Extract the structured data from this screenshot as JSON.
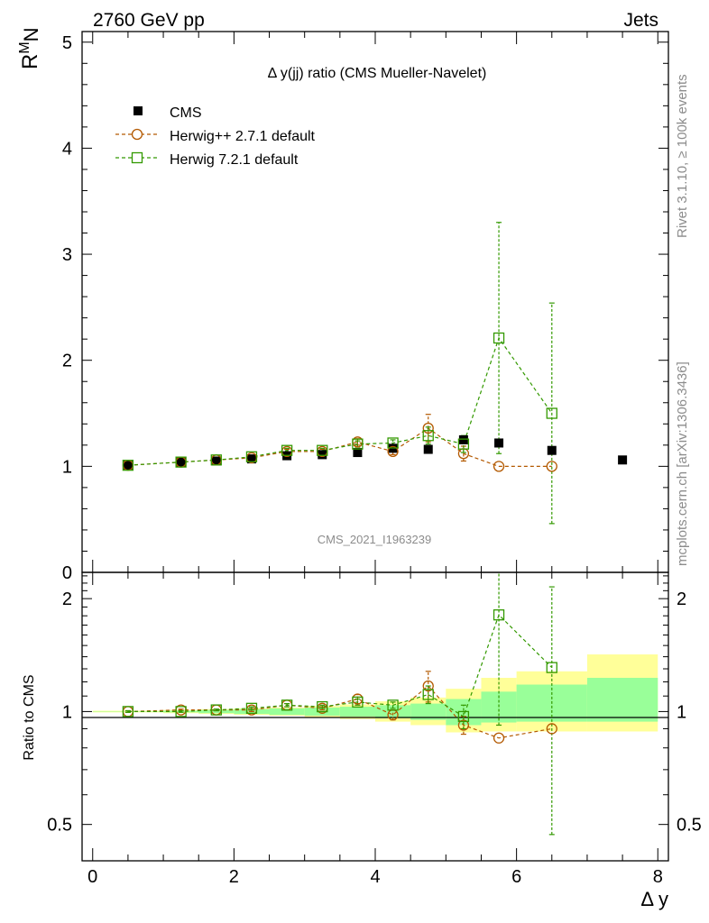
{
  "header": {
    "left": "2760 GeV pp",
    "right": "Jets"
  },
  "side_labels": {
    "rivet": "Rivet 3.1.10, ≥ 100k events",
    "mcplots": "mcplots.cern.ch [arXiv:1306.3436]"
  },
  "watermark": "CMS_2021_I1963239",
  "colors": {
    "cms": "#000000",
    "herwigpp": "#b35900",
    "herwig7": "#339900",
    "band_inner": "#99ff99",
    "band_outer": "#ffff99"
  },
  "chart_data": [
    {
      "type": "scatter",
      "panel": "main",
      "title": "Δ y(jj) ratio (CMS Mueller-Navelet)",
      "ylabel_main": "R",
      "ylabel_sup": "M",
      "ylabel_sub": "N",
      "xlabel": "Δ y",
      "xlim": [
        -0.15,
        8.15
      ],
      "ylim": [
        0,
        5.1
      ],
      "yticks": [
        1,
        2,
        3,
        4,
        5
      ],
      "ytick_labels": [
        "1",
        "2",
        "3",
        "4",
        "5"
      ],
      "bottom_tick_label": "0",
      "legend_position": "top-left",
      "series": [
        {
          "name": "CMS",
          "style": "marker",
          "x": [
            0.5,
            1.25,
            1.75,
            2.25,
            2.75,
            3.25,
            3.75,
            4.25,
            4.75,
            5.25,
            5.75,
            6.5,
            7.5
          ],
          "y": [
            1.01,
            1.04,
            1.05,
            1.07,
            1.1,
            1.11,
            1.13,
            1.17,
            1.16,
            1.25,
            1.22,
            1.15,
            1.06
          ],
          "yerr": [
            0,
            0,
            0,
            0,
            0,
            0,
            0,
            0,
            0,
            0,
            0,
            0,
            0
          ]
        },
        {
          "name": "Herwig++ 2.7.1 default",
          "style": "circle",
          "x": [
            0.5,
            1.25,
            1.75,
            2.25,
            2.75,
            3.25,
            3.75,
            4.25,
            4.75,
            5.25,
            5.75,
            6.5
          ],
          "y": [
            1.01,
            1.04,
            1.06,
            1.08,
            1.14,
            1.14,
            1.23,
            1.14,
            1.36,
            1.12,
            1.0,
            1.0
          ],
          "yerr": [
            0.01,
            0.01,
            0.01,
            0.01,
            0.02,
            0.02,
            0.03,
            0.03,
            0.13,
            0.07,
            0,
            0
          ]
        },
        {
          "name": "Herwig 7.2.1 default",
          "style": "square",
          "x": [
            0.5,
            1.25,
            1.75,
            2.25,
            2.75,
            3.25,
            3.75,
            4.25,
            4.75,
            5.25,
            5.75,
            6.5
          ],
          "y": [
            1.01,
            1.04,
            1.06,
            1.09,
            1.15,
            1.15,
            1.21,
            1.22,
            1.29,
            1.21,
            2.21,
            1.5
          ],
          "yerr": [
            0.01,
            0.01,
            0.01,
            0.01,
            0.02,
            0.02,
            0.03,
            0.03,
            0.08,
            0.08,
            1.09,
            1.04
          ]
        }
      ]
    },
    {
      "type": "scatter",
      "panel": "ratio",
      "ylabel": "Ratio to CMS",
      "xlabel": "Δ y",
      "xlim": [
        -0.15,
        8.15
      ],
      "ylim": [
        0.4,
        2.35
      ],
      "yticks": [
        0.5,
        1,
        2
      ],
      "ytick_labels": [
        "0.5",
        "1",
        "2"
      ],
      "xticks": [
        0,
        2,
        4,
        6,
        8
      ],
      "xtick_labels": [
        "0",
        "2",
        "4",
        "6",
        "8"
      ],
      "bands": {
        "x_edges": [
          0,
          1,
          1.5,
          2,
          2.5,
          3,
          3.5,
          4,
          4.5,
          5,
          5.5,
          6,
          7,
          8
        ],
        "inner_low": [
          1.0,
          0.995,
          0.99,
          0.985,
          0.98,
          0.975,
          0.97,
          0.96,
          0.95,
          0.92,
          0.935,
          0.94,
          0.94
        ],
        "inner_high": [
          1.0,
          1.005,
          1.01,
          1.015,
          1.02,
          1.025,
          1.03,
          1.04,
          1.05,
          1.08,
          1.13,
          1.18,
          1.23
        ],
        "outer_low": [
          0.995,
          0.99,
          0.985,
          0.98,
          0.975,
          0.965,
          0.955,
          0.94,
          0.92,
          0.88,
          0.885,
          0.885,
          0.885
        ],
        "outer_high": [
          1.005,
          1.01,
          1.015,
          1.02,
          1.025,
          1.035,
          1.045,
          1.065,
          1.09,
          1.15,
          1.23,
          1.28,
          1.42
        ]
      },
      "series": [
        {
          "name": "Herwig++ 2.7.1 default",
          "style": "circle",
          "x": [
            0.5,
            1.25,
            1.75,
            2.25,
            2.75,
            3.25,
            3.75,
            4.25,
            4.75,
            5.25,
            5.75,
            6.5
          ],
          "y": [
            1.0,
            1.01,
            1.01,
            1.01,
            1.04,
            1.02,
            1.08,
            0.98,
            1.17,
            0.92,
            0.85,
            0.9
          ],
          "yerr": [
            0.005,
            0.005,
            0.005,
            0.01,
            0.01,
            0.01,
            0.03,
            0.03,
            0.11,
            0.05,
            0,
            0
          ]
        },
        {
          "name": "Herwig 7.2.1 default",
          "style": "square",
          "x": [
            0.5,
            1.25,
            1.75,
            2.25,
            2.75,
            3.25,
            3.75,
            4.25,
            4.75,
            5.25,
            5.75,
            6.5
          ],
          "y": [
            1.0,
            1.0,
            1.01,
            1.02,
            1.04,
            1.03,
            1.06,
            1.04,
            1.11,
            0.97,
            1.81,
            1.31
          ],
          "yerr": [
            0.005,
            0.005,
            0.005,
            0.01,
            0.01,
            0.01,
            0.02,
            0.02,
            0.06,
            0.07,
            0.89,
            0.84
          ]
        }
      ]
    }
  ]
}
